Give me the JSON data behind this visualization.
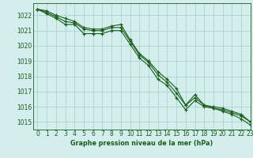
{
  "title": "Graphe pression niveau de la mer (hPa)",
  "bg_color": "#d4eeee",
  "grid_color": "#b0d8d0",
  "line_color": "#1a5c1a",
  "xlim": [
    -0.5,
    23
  ],
  "ylim": [
    1014.5,
    1022.8
  ],
  "yticks": [
    1015,
    1016,
    1017,
    1018,
    1019,
    1020,
    1021,
    1022
  ],
  "xticks": [
    0,
    1,
    2,
    3,
    4,
    5,
    6,
    7,
    8,
    9,
    10,
    11,
    12,
    13,
    14,
    15,
    16,
    17,
    18,
    19,
    20,
    21,
    22,
    23
  ],
  "series1": [
    1022.4,
    1022.3,
    1022.0,
    1021.8,
    1021.6,
    1021.2,
    1021.1,
    1021.1,
    1021.3,
    1021.4,
    1020.4,
    1019.5,
    1019.0,
    1018.3,
    1017.8,
    1017.2,
    1016.1,
    1016.8,
    1016.1,
    1016.0,
    1015.9,
    1015.7,
    1015.5,
    1015.0
  ],
  "series2": [
    1022.4,
    1022.2,
    1021.9,
    1021.6,
    1021.5,
    1021.1,
    1021.0,
    1021.0,
    1021.2,
    1021.2,
    1020.3,
    1019.4,
    1018.9,
    1018.1,
    1017.6,
    1016.9,
    1016.1,
    1016.6,
    1016.1,
    1015.9,
    1015.8,
    1015.6,
    1015.4,
    1015.0
  ],
  "series3": [
    1022.4,
    1022.1,
    1021.8,
    1021.4,
    1021.4,
    1020.8,
    1020.8,
    1020.8,
    1021.0,
    1021.0,
    1020.1,
    1019.2,
    1018.7,
    1017.8,
    1017.4,
    1016.6,
    1015.8,
    1016.4,
    1016.0,
    1015.9,
    1015.7,
    1015.5,
    1015.2,
    1014.8
  ],
  "tick_fontsize": 5.5,
  "label_fontsize": 5.8
}
